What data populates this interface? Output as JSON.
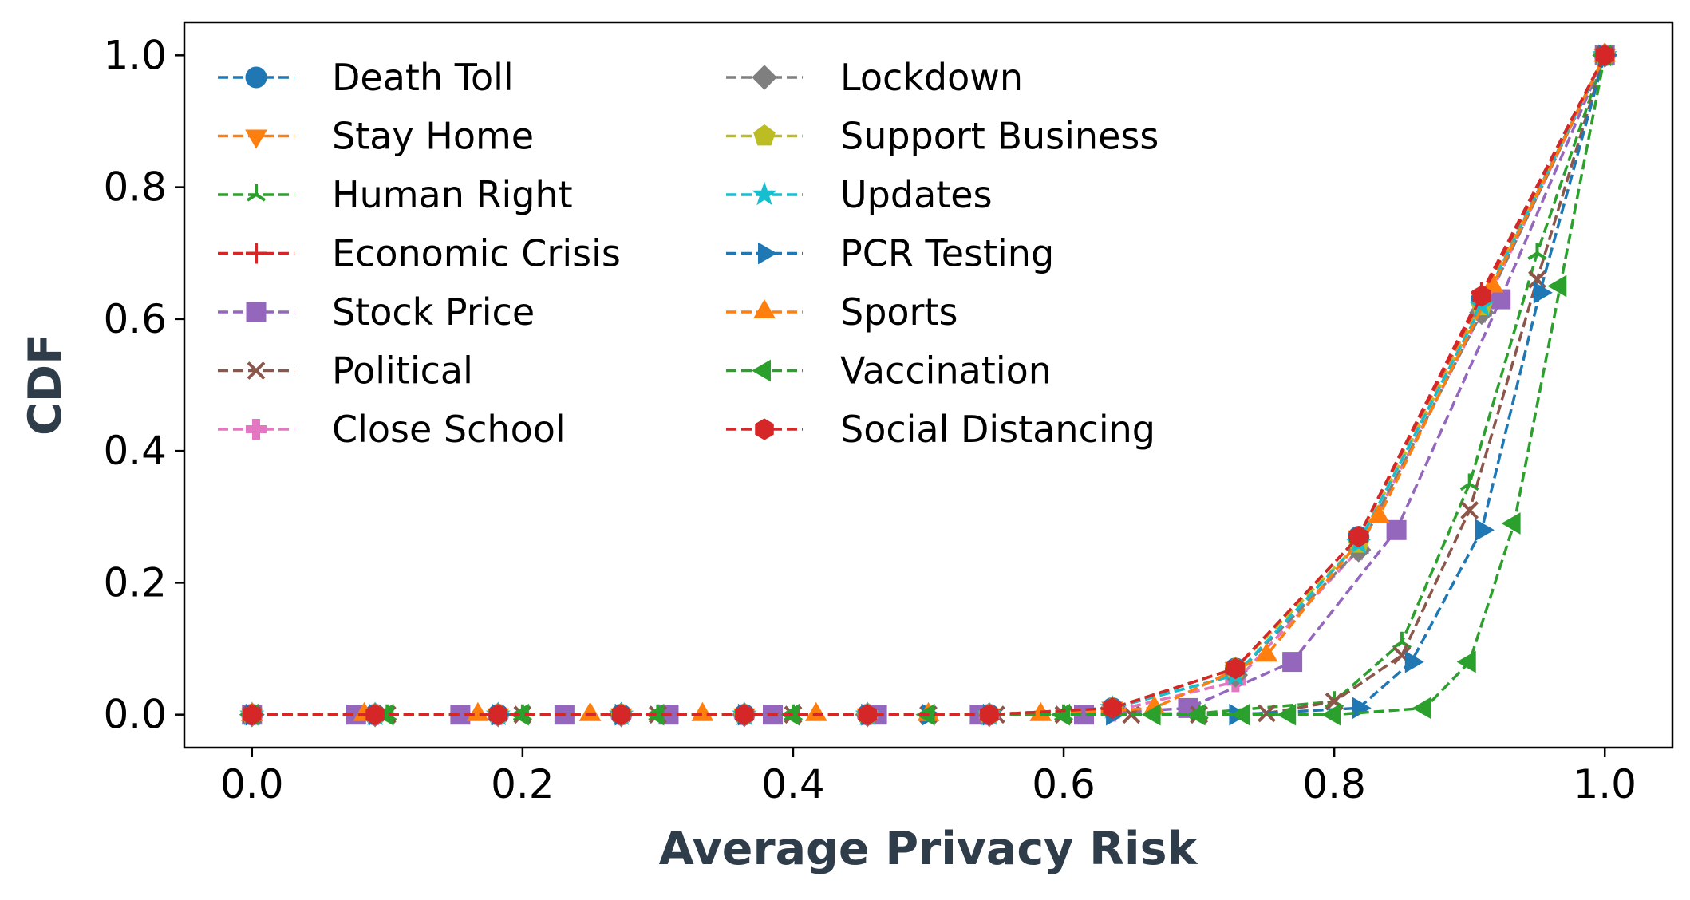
{
  "chart_data": {
    "type": "line",
    "title": "",
    "xlabel": "Average Privacy Risk",
    "ylabel": "CDF",
    "xlim": [
      -0.05,
      1.05
    ],
    "ylim": [
      -0.05,
      1.05
    ],
    "xticks": [
      "0.0",
      "0.2",
      "0.4",
      "0.6",
      "0.8",
      "1.0"
    ],
    "yticks": [
      "0.0",
      "0.2",
      "0.4",
      "0.6",
      "0.8",
      "1.0"
    ],
    "grid": false,
    "legend_position": "top-left",
    "series": [
      {
        "name": "Death Toll",
        "color": "#1f77b4",
        "marker": "circle",
        "x": [
          0,
          0.091,
          0.182,
          0.273,
          0.364,
          0.455,
          0.545,
          0.636,
          0.727,
          0.818,
          0.909,
          1.0
        ],
        "y": [
          0,
          0,
          0,
          0,
          0,
          0,
          0,
          0.01,
          0.07,
          0.27,
          0.63,
          1.0
        ]
      },
      {
        "name": "Stay Home",
        "color": "#ff7f0e",
        "marker": "triangle-down",
        "x": [
          0,
          0.091,
          0.182,
          0.273,
          0.364,
          0.455,
          0.545,
          0.636,
          0.727,
          0.818,
          0.909,
          1.0
        ],
        "y": [
          0,
          0,
          0,
          0,
          0,
          0,
          0,
          0.01,
          0.07,
          0.27,
          0.63,
          1.0
        ]
      },
      {
        "name": "Human Right",
        "color": "#2ca02c",
        "marker": "tri-up",
        "x": [
          0,
          0.1,
          0.2,
          0.3,
          0.4,
          0.5,
          0.6,
          0.7,
          0.8,
          0.85,
          0.9,
          0.95,
          1.0
        ],
        "y": [
          0,
          0,
          0,
          0,
          0,
          0,
          0,
          0.002,
          0.02,
          0.11,
          0.35,
          0.7,
          1.0
        ]
      },
      {
        "name": "Economic Crisis",
        "color": "#d62728",
        "marker": "plus",
        "x": [
          0,
          0.091,
          0.182,
          0.273,
          0.364,
          0.455,
          0.545,
          0.636,
          0.727,
          0.818,
          0.909,
          1.0
        ],
        "y": [
          0,
          0,
          0,
          0,
          0,
          0,
          0,
          0.01,
          0.07,
          0.27,
          0.64,
          1.0
        ]
      },
      {
        "name": "Stock Price",
        "color": "#9467bd",
        "marker": "square",
        "x": [
          0,
          0.077,
          0.154,
          0.231,
          0.308,
          0.385,
          0.462,
          0.538,
          0.615,
          0.692,
          0.769,
          0.846,
          0.923,
          1.0
        ],
        "y": [
          0,
          0,
          0,
          0,
          0,
          0,
          0,
          0,
          0,
          0.01,
          0.08,
          0.28,
          0.63,
          1.0
        ]
      },
      {
        "name": "Political",
        "color": "#8c564b",
        "marker": "x",
        "x": [
          0,
          0.1,
          0.2,
          0.3,
          0.4,
          0.5,
          0.55,
          0.6,
          0.65,
          0.7,
          0.75,
          0.8,
          0.85,
          0.9,
          0.95,
          1.0
        ],
        "y": [
          0,
          0,
          0,
          0,
          0,
          0,
          0,
          0,
          0,
          0,
          0.002,
          0.02,
          0.09,
          0.31,
          0.66,
          1.0
        ]
      },
      {
        "name": "Close School",
        "color": "#e377c2",
        "marker": "plus-filled",
        "x": [
          0,
          0.091,
          0.182,
          0.273,
          0.364,
          0.455,
          0.545,
          0.636,
          0.727,
          0.818,
          0.909,
          1.0
        ],
        "y": [
          0,
          0,
          0,
          0,
          0,
          0,
          0,
          0.005,
          0.05,
          0.25,
          0.61,
          1.0
        ]
      },
      {
        "name": "Lockdown",
        "color": "#7f7f7f",
        "marker": "diamond",
        "x": [
          0,
          0.091,
          0.182,
          0.273,
          0.364,
          0.455,
          0.545,
          0.636,
          0.727,
          0.818,
          0.909,
          1.0
        ],
        "y": [
          0,
          0,
          0,
          0,
          0,
          0,
          0,
          0.01,
          0.06,
          0.25,
          0.61,
          1.0
        ]
      },
      {
        "name": "Support Business",
        "color": "#bcbd22",
        "marker": "pentagon",
        "x": [
          0,
          0.091,
          0.182,
          0.273,
          0.364,
          0.455,
          0.545,
          0.636,
          0.727,
          0.818,
          0.909,
          1.0
        ],
        "y": [
          0,
          0,
          0,
          0,
          0,
          0,
          0,
          0.01,
          0.07,
          0.26,
          0.62,
          1.0
        ]
      },
      {
        "name": "Updates",
        "color": "#17becf",
        "marker": "star",
        "x": [
          0,
          0.091,
          0.182,
          0.273,
          0.364,
          0.455,
          0.545,
          0.636,
          0.727,
          0.818,
          0.909,
          1.0
        ],
        "y": [
          0,
          0,
          0,
          0,
          0,
          0,
          0,
          0.01,
          0.06,
          0.26,
          0.62,
          1.0
        ]
      },
      {
        "name": "PCR Testing",
        "color": "#1f77b4",
        "marker": "triangle-right",
        "x": [
          0,
          0.091,
          0.182,
          0.273,
          0.364,
          0.455,
          0.5,
          0.545,
          0.636,
          0.727,
          0.818,
          0.857,
          0.909,
          0.952,
          1.0
        ],
        "y": [
          0,
          0,
          0,
          0,
          0,
          0,
          0,
          0,
          0,
          0,
          0.01,
          0.08,
          0.28,
          0.64,
          1.0
        ]
      },
      {
        "name": "Sports",
        "color": "#ff7f0e",
        "marker": "triangle-up",
        "x": [
          0,
          0.083,
          0.167,
          0.25,
          0.333,
          0.417,
          0.5,
          0.583,
          0.667,
          0.75,
          0.833,
          0.917,
          1.0
        ],
        "y": [
          0,
          0,
          0,
          0,
          0,
          0,
          0,
          0,
          0.01,
          0.09,
          0.3,
          0.65,
          1.0
        ]
      },
      {
        "name": "Vaccination",
        "color": "#2ca02c",
        "marker": "triangle-left",
        "x": [
          0,
          0.1,
          0.2,
          0.3,
          0.4,
          0.5,
          0.6,
          0.667,
          0.7,
          0.733,
          0.767,
          0.8,
          0.867,
          0.9,
          0.933,
          0.967,
          1.0
        ],
        "y": [
          0,
          0,
          0,
          0,
          0,
          0,
          0,
          0,
          0,
          0,
          0,
          0,
          0.01,
          0.08,
          0.29,
          0.65,
          1.0
        ]
      },
      {
        "name": "Social Distancing",
        "color": "#d62728",
        "marker": "hexagon",
        "x": [
          0,
          0.091,
          0.182,
          0.273,
          0.364,
          0.455,
          0.545,
          0.636,
          0.727,
          0.818,
          0.909,
          1.0
        ],
        "y": [
          0,
          0,
          0,
          0,
          0,
          0,
          0,
          0.01,
          0.07,
          0.27,
          0.635,
          1.0
        ]
      }
    ]
  }
}
